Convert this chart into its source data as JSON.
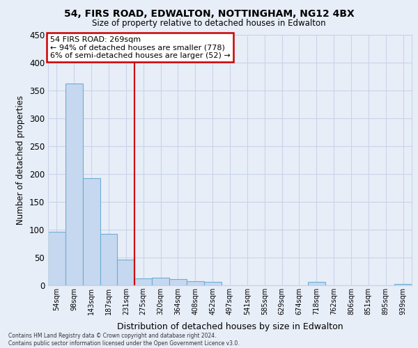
{
  "title1": "54, FIRS ROAD, EDWALTON, NOTTINGHAM, NG12 4BX",
  "title2": "Size of property relative to detached houses in Edwalton",
  "xlabel": "Distribution of detached houses by size in Edwalton",
  "ylabel": "Number of detached properties",
  "categories": [
    "54sqm",
    "98sqm",
    "143sqm",
    "187sqm",
    "231sqm",
    "275sqm",
    "320sqm",
    "364sqm",
    "408sqm",
    "452sqm",
    "497sqm",
    "541sqm",
    "585sqm",
    "629sqm",
    "674sqm",
    "718sqm",
    "762sqm",
    "806sqm",
    "851sqm",
    "895sqm",
    "939sqm"
  ],
  "values": [
    96,
    362,
    193,
    93,
    46,
    13,
    14,
    11,
    7,
    6,
    0,
    0,
    0,
    0,
    0,
    6,
    0,
    0,
    0,
    0,
    3
  ],
  "bar_color": "#c5d8ef",
  "bar_edge_color": "#6baed6",
  "vline_color": "#cc0000",
  "vline_index": 5,
  "annotation_text": "54 FIRS ROAD: 269sqm\n← 94% of detached houses are smaller (778)\n6% of semi-detached houses are larger (52) →",
  "annotation_box_color": "#ffffff",
  "annotation_box_edge_color": "#cc0000",
  "ylim": [
    0,
    450
  ],
  "yticks": [
    0,
    50,
    100,
    150,
    200,
    250,
    300,
    350,
    400,
    450
  ],
  "grid_color": "#c8d4e8",
  "footnote": "Contains HM Land Registry data © Crown copyright and database right 2024.\nContains public sector information licensed under the Open Government Licence v3.0.",
  "bg_color": "#e8eef8"
}
